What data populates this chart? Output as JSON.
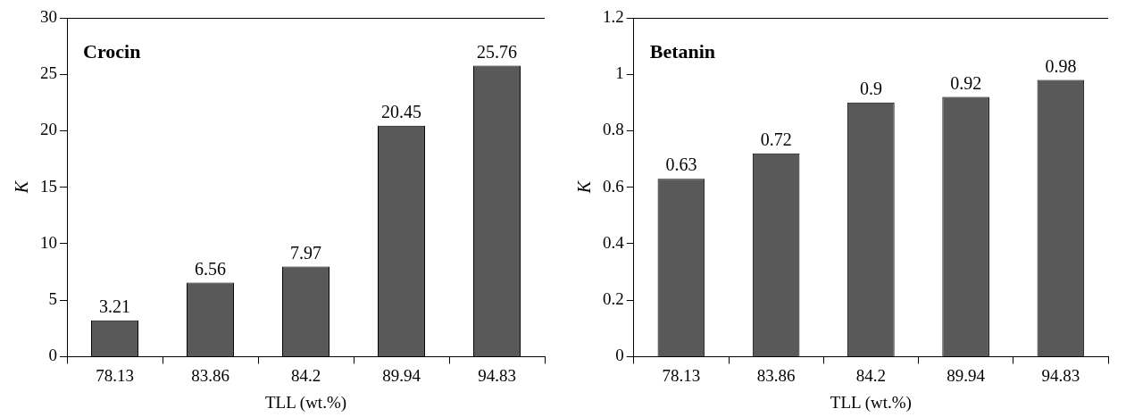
{
  "chart_data": [
    {
      "type": "bar",
      "annotations": [
        "Crocin"
      ],
      "xlabel": "TLL (wt.%)",
      "ylabel": "K",
      "categories": [
        "78.13",
        "83.86",
        "84.2",
        "89.94",
        "94.83"
      ],
      "values": [
        3.21,
        6.56,
        7.97,
        20.45,
        25.76
      ],
      "color": "#595959",
      "ylim": [
        0,
        30
      ],
      "yticks": [
        0,
        5,
        10,
        15,
        20,
        25,
        30
      ],
      "data_labels": true,
      "grid": false,
      "legend": false
    },
    {
      "type": "bar",
      "annotations": [
        "Betanin"
      ],
      "xlabel": "TLL (wt.%)",
      "ylabel": "K",
      "categories": [
        "78.13",
        "83.86",
        "84.2",
        "89.94",
        "94.83"
      ],
      "values": [
        0.63,
        0.72,
        0.9,
        0.92,
        0.98
      ],
      "color": "#595959",
      "ylim": [
        0,
        1.2
      ],
      "yticks": [
        0,
        0.2,
        0.4,
        0.6,
        0.8,
        1,
        1.2
      ],
      "data_labels": true,
      "grid": false,
      "legend": false
    }
  ]
}
